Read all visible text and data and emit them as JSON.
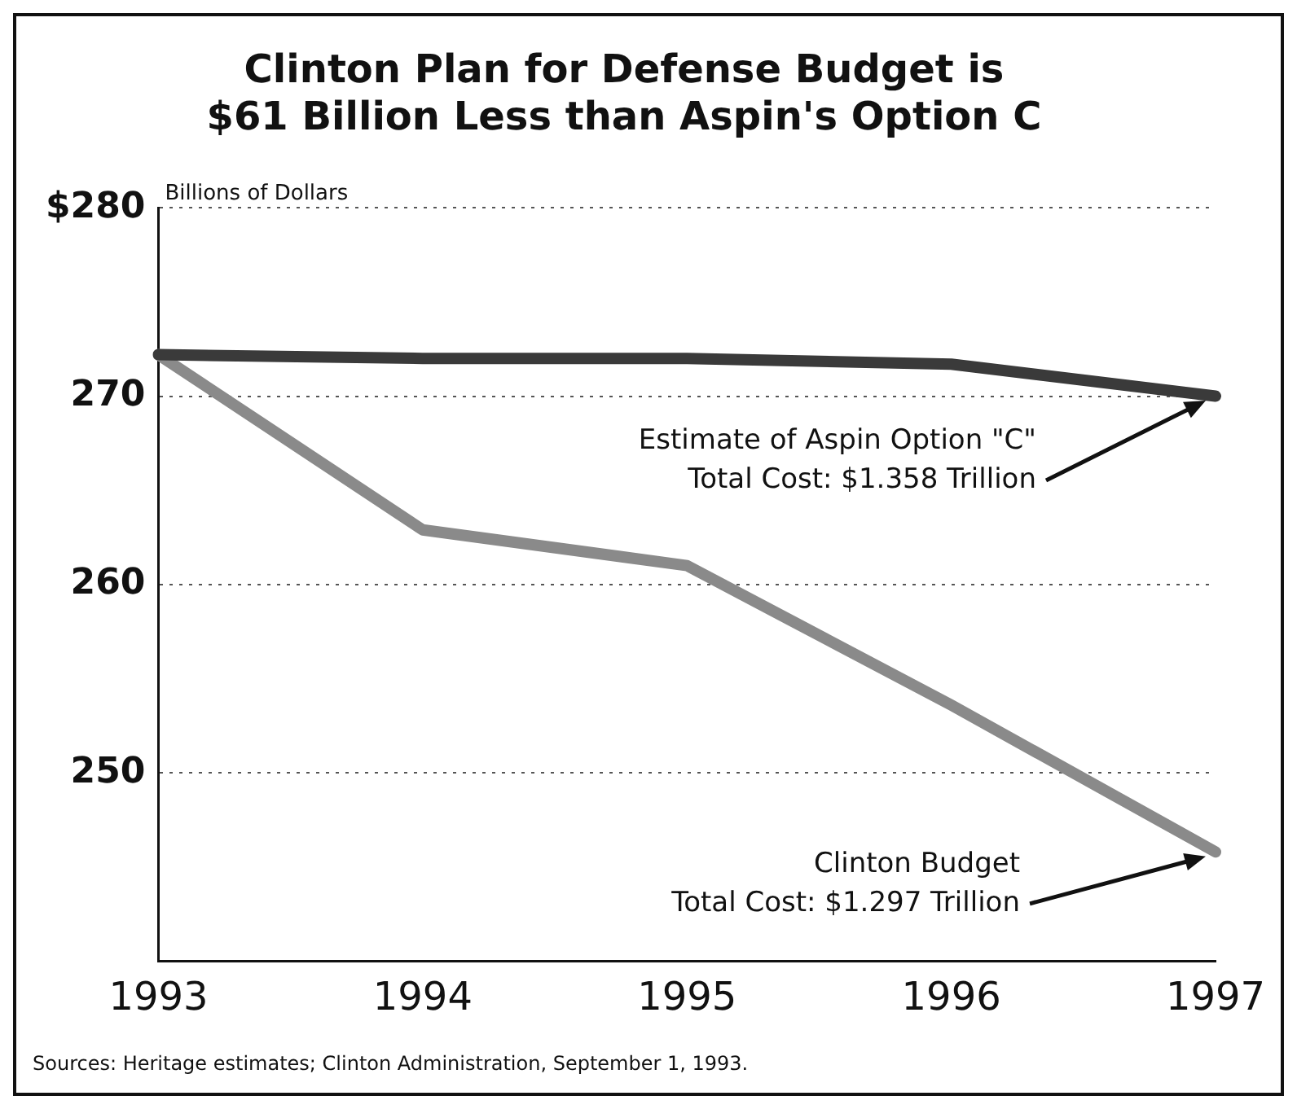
{
  "chart_data": {
    "type": "line",
    "title": [
      "Clinton Plan for Defense Budget is",
      "$61 Billion Less than Aspin's Option C"
    ],
    "ylabel": "Billions of Dollars",
    "categories": [
      "1993",
      "1994",
      "1995",
      "1996",
      "1997"
    ],
    "series": [
      {
        "color": "#3a3a3a",
        "values": [
          272.2,
          272,
          272,
          271.7,
          270
        ]
      },
      {
        "color": "#8a8a8a",
        "values": [
          272.2,
          262.9,
          261,
          253.6,
          245.8
        ]
      }
    ],
    "ylim": [
      240,
      280
    ],
    "yticks": [
      {
        "value": 250,
        "label": "250"
      },
      {
        "value": 260,
        "label": "260"
      },
      {
        "value": 270,
        "label": "270"
      },
      {
        "value": 280,
        "label": "$280"
      }
    ],
    "grid": "y",
    "legend": false,
    "marker": "none",
    "line_style": "solid",
    "annotations": [
      "Estimate of Aspin Option \"C\"\nTotal Cost: $1.358 Trillion",
      "Clinton Budget\nTotal Cost: $1.297 Trillion",
      "Sources: Heritage estimates; Clinton Administration, September 1, 1993."
    ]
  }
}
